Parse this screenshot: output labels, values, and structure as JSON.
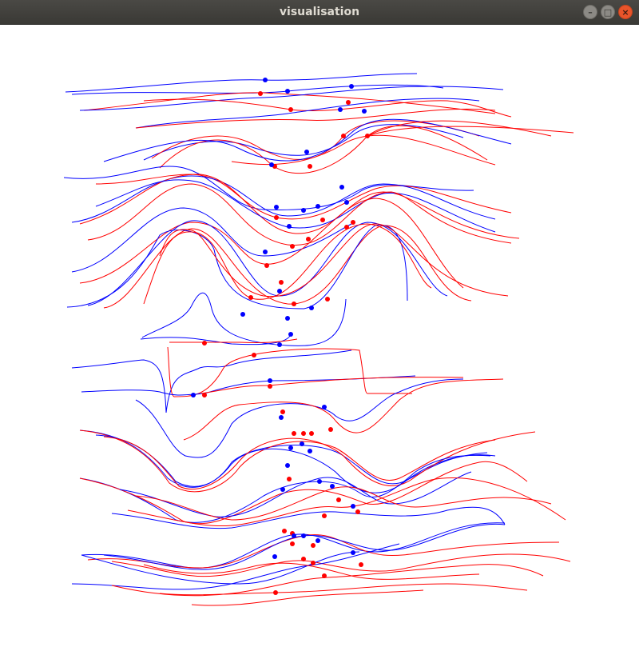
{
  "window": {
    "title": "visualisation",
    "controls": {
      "minimize_icon": "–",
      "maximize_icon": "□",
      "close_icon": "×"
    }
  },
  "colors": {
    "series_a": "#ff0000",
    "series_b": "#0000ff",
    "background": "#ffffff"
  }
}
